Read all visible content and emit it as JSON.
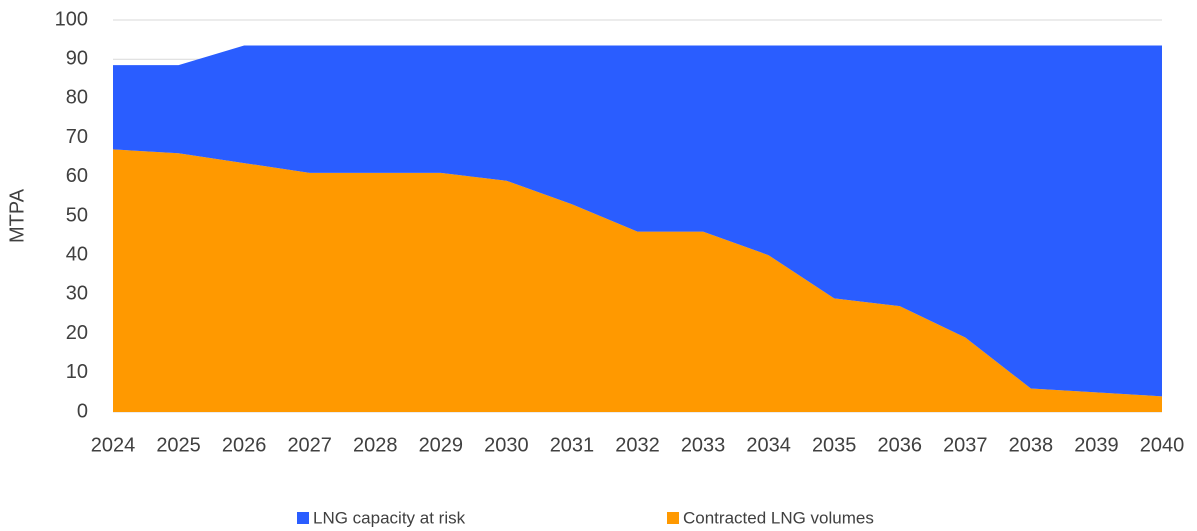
{
  "chart_data": {
    "type": "stacked_area",
    "y_label": "MTPA",
    "categories": [
      "2024",
      "2025",
      "2026",
      "2027",
      "2028",
      "2029",
      "2030",
      "2031",
      "2032",
      "2033",
      "2034",
      "2035",
      "2036",
      "2037",
      "2038",
      "2039",
      "2040"
    ],
    "series": [
      {
        "name": "LNG capacity at risk",
        "color": "#2a5dff",
        "values": [
          21.5,
          22.5,
          30,
          32.5,
          32.5,
          32.5,
          34.5,
          40.5,
          47.5,
          47.5,
          53.5,
          64.5,
          66.5,
          74.5,
          87.5,
          88.5,
          89.5
        ]
      },
      {
        "name": "Contracted LNG volumes",
        "color": "#ff9900",
        "values": [
          67,
          66,
          63.5,
          61,
          61,
          61,
          59,
          53,
          46,
          46,
          40,
          29,
          27,
          19,
          6,
          5,
          4
        ]
      }
    ],
    "ylim": [
      0,
      100
    ],
    "yticks": [
      0,
      10,
      20,
      30,
      40,
      50,
      60,
      70,
      80,
      90,
      100
    ],
    "grid": true,
    "legend": "bottom"
  }
}
